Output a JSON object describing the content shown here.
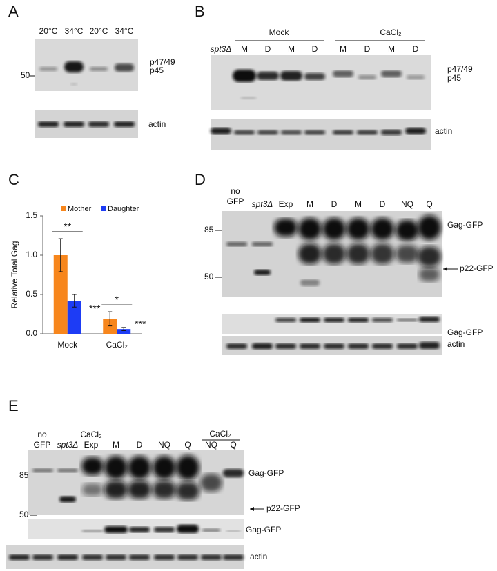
{
  "panels": {
    "A": {
      "letter": "A",
      "lanes": [
        "20°C",
        "34°C",
        "20°C",
        "34°C"
      ],
      "marker": "50",
      "bands": [
        "p47/49",
        "p45"
      ],
      "loading": "actin"
    },
    "B": {
      "letter": "B",
      "control": "spt3Δ",
      "groups": [
        {
          "label": "Mock",
          "lanes": [
            "M",
            "D",
            "M",
            "D"
          ]
        },
        {
          "label": "CaCl₂",
          "lanes": [
            "M",
            "D",
            "M",
            "D"
          ]
        }
      ],
      "bands": [
        "p47/49",
        "p45"
      ],
      "loading": "actin"
    },
    "D": {
      "letter": "D",
      "lanes": [
        "no GFP",
        "spt3Δ",
        "Exp",
        "M",
        "D",
        "M",
        "D",
        "NQ",
        "Q"
      ],
      "markers": [
        "85",
        "50"
      ],
      "bands": [
        "Gag-GFP",
        "p22-GFP"
      ],
      "short_exposure": "Gag-GFP",
      "loading": "actin"
    },
    "E": {
      "letter": "E",
      "lanes": [
        "no GFP",
        "spt3Δ",
        "CaCl₂ Exp",
        "M",
        "D",
        "NQ",
        "Q"
      ],
      "group": {
        "label": "CaCl₂",
        "lanes": [
          "NQ",
          "Q"
        ]
      },
      "markers": [
        "85",
        "50"
      ],
      "bands": [
        "Gag-GFP",
        "p22-GFP"
      ],
      "short_exposure": "Gag-GFP",
      "loading": "actin"
    }
  },
  "chart_data": {
    "type": "bar",
    "panel": "C",
    "y_label": "Relative Total Gag",
    "categories": [
      "Mock",
      "CaCl₂"
    ],
    "series": [
      {
        "name": "Mother",
        "color": "#f7861c",
        "values": [
          1.0,
          0.19
        ],
        "errors": [
          0.21,
          0.09
        ]
      },
      {
        "name": "Daughter",
        "color": "#1d3cf5",
        "values": [
          0.42,
          0.06
        ],
        "errors": [
          0.08,
          0.02
        ]
      }
    ],
    "ylim": [
      0,
      1.5
    ],
    "yticks": [
      {
        "value": 0,
        "label": "0.0"
      },
      {
        "value": 0.5,
        "label": "0.5"
      },
      {
        "value": 1,
        "label": "1.0"
      },
      {
        "value": 1.5,
        "label": "1.5"
      }
    ],
    "annotations": [
      "**",
      "*",
      "***",
      "***"
    ],
    "legend": "top"
  }
}
